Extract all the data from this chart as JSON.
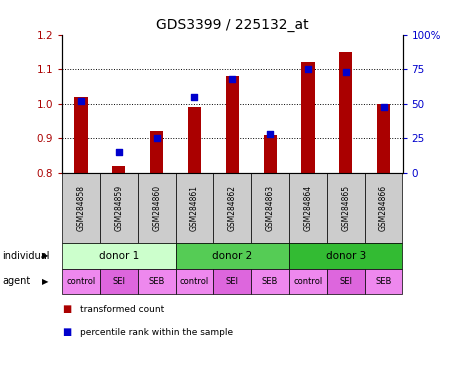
{
  "title": "GDS3399 / 225132_at",
  "samples": [
    "GSM284858",
    "GSM284859",
    "GSM284860",
    "GSM284861",
    "GSM284862",
    "GSM284863",
    "GSM284864",
    "GSM284865",
    "GSM284866"
  ],
  "transformed_counts": [
    1.02,
    0.82,
    0.92,
    0.99,
    1.08,
    0.91,
    1.12,
    1.15,
    1.0
  ],
  "percentile_ranks": [
    52,
    15,
    25,
    55,
    68,
    28,
    75,
    73,
    48
  ],
  "ylim_left": [
    0.8,
    1.2
  ],
  "ylim_right": [
    0,
    100
  ],
  "yticks_left": [
    0.8,
    0.9,
    1.0,
    1.1,
    1.2
  ],
  "yticks_right": [
    0,
    25,
    50,
    75,
    100
  ],
  "bar_color": "#aa0000",
  "dot_color": "#0000cc",
  "bar_width": 0.35,
  "donors": [
    {
      "label": "donor 1",
      "cols": [
        0,
        1,
        2
      ],
      "color": "#ccffcc"
    },
    {
      "label": "donor 2",
      "cols": [
        3,
        4,
        5
      ],
      "color": "#55cc55"
    },
    {
      "label": "donor 3",
      "cols": [
        6,
        7,
        8
      ],
      "color": "#33bb33"
    }
  ],
  "agents": [
    "control",
    "SEI",
    "SEB",
    "control",
    "SEI",
    "SEB",
    "control",
    "SEI",
    "SEB"
  ],
  "agent_colors": [
    "#ee88ee",
    "#dd66dd",
    "#ee88ee",
    "#ee88ee",
    "#dd66dd",
    "#ee88ee",
    "#ee88ee",
    "#dd66dd",
    "#ee88ee"
  ],
  "sample_bg": "#cccccc",
  "legend_items": [
    {
      "label": "transformed count",
      "color": "#aa0000"
    },
    {
      "label": "percentile rank within the sample",
      "color": "#0000cc"
    }
  ]
}
